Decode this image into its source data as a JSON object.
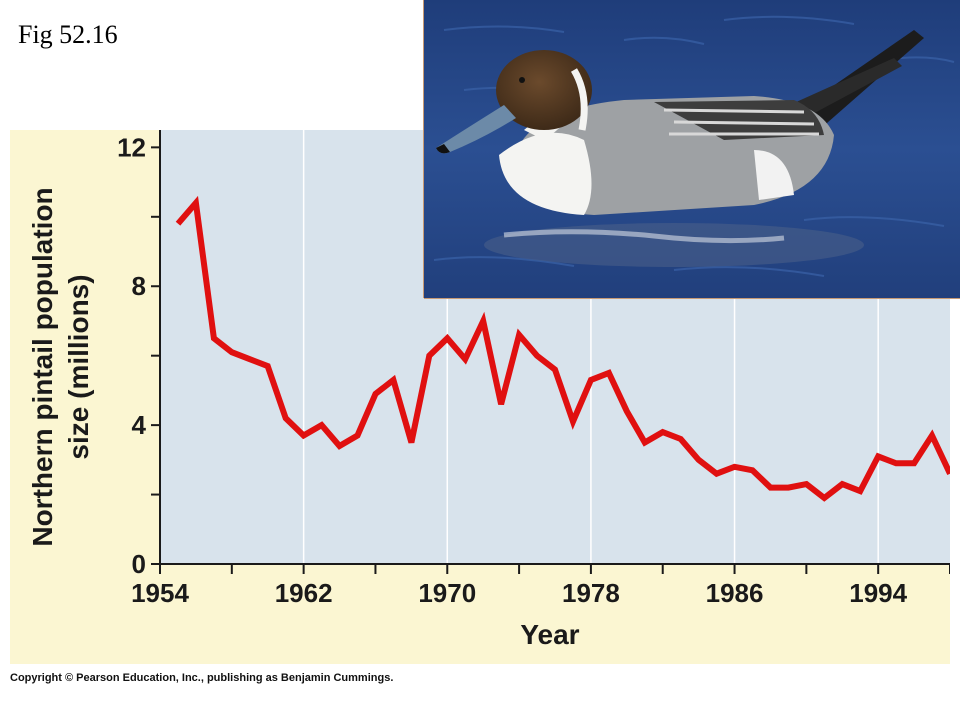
{
  "figure_label": "Fig 52.16",
  "copyright": "Copyright © Pearson Education, Inc., publishing as Benjamin Cummings.",
  "photo": {
    "subject": "northern pintail duck",
    "icon": "duck-photo"
  },
  "colors": {
    "line": "#e01010",
    "plot_bg": "#d8e3ec",
    "panel_bg": "#fbf6d2",
    "grid": "#ffffff"
  },
  "chart_data": {
    "type": "line",
    "title": "",
    "xlabel": "Year",
    "ylabel": "Northern pintail population size (millions)",
    "xlim": [
      1954,
      1998
    ],
    "ylim": [
      0,
      12.5
    ],
    "xticks": [
      1954,
      1962,
      1970,
      1978,
      1986,
      1994
    ],
    "yticks": [
      0,
      4,
      8,
      12
    ],
    "grid": "vertical",
    "series": [
      {
        "name": "",
        "x": [
          1955,
          1956,
          1957,
          1958,
          1959,
          1960,
          1961,
          1962,
          1963,
          1964,
          1965,
          1966,
          1967,
          1968,
          1969,
          1970,
          1971,
          1972,
          1973,
          1974,
          1975,
          1976,
          1977,
          1978,
          1979,
          1980,
          1981,
          1982,
          1983,
          1984,
          1985,
          1986,
          1987,
          1988,
          1989,
          1990,
          1991,
          1992,
          1993,
          1994,
          1995,
          1996,
          1997,
          1998
        ],
        "y": [
          9.8,
          10.4,
          6.5,
          6.1,
          5.9,
          5.7,
          4.2,
          3.7,
          4.0,
          3.4,
          3.7,
          4.9,
          5.3,
          3.5,
          6.0,
          6.5,
          5.9,
          7.0,
          4.6,
          6.6,
          6.0,
          5.6,
          4.1,
          5.3,
          5.5,
          4.4,
          3.5,
          3.8,
          3.6,
          3.0,
          2.6,
          2.8,
          2.7,
          2.2,
          2.2,
          2.3,
          1.9,
          2.3,
          2.1,
          3.1,
          2.9,
          2.9,
          3.7,
          2.6
        ]
      }
    ]
  }
}
